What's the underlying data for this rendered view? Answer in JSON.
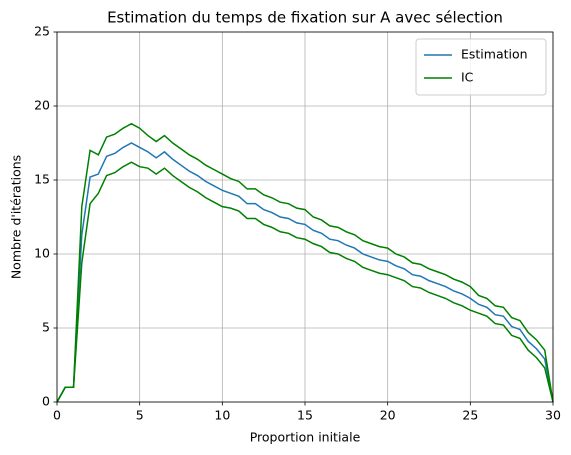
{
  "chart_data": {
    "type": "line",
    "title": "Estimation du temps de fixation sur A avec sélection",
    "xlabel": "Proportion initiale",
    "ylabel": "Nombre d'itérations",
    "x": [
      0,
      0.5,
      1,
      1.5,
      2,
      2.5,
      3,
      3.5,
      4,
      4.5,
      5,
      5.5,
      6,
      6.5,
      7,
      7.5,
      8,
      8.5,
      9,
      9.5,
      10,
      10.5,
      11,
      11.5,
      12,
      12.5,
      13,
      13.5,
      14,
      14.5,
      15,
      15.5,
      16,
      16.5,
      17,
      17.5,
      18,
      18.5,
      19,
      19.5,
      20,
      20.5,
      21,
      21.5,
      22,
      22.5,
      23,
      23.5,
      24,
      24.5,
      25,
      25.5,
      26,
      26.5,
      27,
      27.5,
      28,
      28.5,
      29,
      29.5,
      30
    ],
    "series": [
      {
        "name": "Estimation",
        "color": "#1f77b4",
        "values": [
          0,
          1,
          1,
          11.3,
          15.2,
          15.4,
          16.6,
          16.8,
          17.2,
          17.5,
          17.2,
          16.9,
          16.5,
          16.9,
          16.4,
          16.0,
          15.6,
          15.3,
          14.9,
          14.6,
          14.3,
          14.1,
          13.9,
          13.4,
          13.4,
          13.0,
          12.8,
          12.5,
          12.4,
          12.1,
          12.0,
          11.6,
          11.4,
          11.0,
          10.9,
          10.6,
          10.4,
          10.0,
          9.8,
          9.6,
          9.5,
          9.2,
          9.0,
          8.6,
          8.5,
          8.2,
          8.0,
          7.8,
          7.5,
          7.3,
          7.0,
          6.6,
          6.4,
          5.9,
          5.8,
          5.1,
          4.9,
          4.1,
          3.6,
          2.9,
          0
        ]
      },
      {
        "name": "IC",
        "color": "#008000",
        "values": [
          0,
          1,
          1,
          13.2,
          17.0,
          16.7,
          17.9,
          18.1,
          18.5,
          18.8,
          18.5,
          18.0,
          17.6,
          18.0,
          17.5,
          17.1,
          16.7,
          16.4,
          16.0,
          15.7,
          15.4,
          15.1,
          14.9,
          14.4,
          14.4,
          14.0,
          13.8,
          13.5,
          13.4,
          13.1,
          13.0,
          12.5,
          12.3,
          11.9,
          11.8,
          11.5,
          11.3,
          10.9,
          10.7,
          10.5,
          10.4,
          10.0,
          9.8,
          9.4,
          9.3,
          9.0,
          8.8,
          8.6,
          8.3,
          8.1,
          7.8,
          7.2,
          7.0,
          6.5,
          6.4,
          5.7,
          5.5,
          4.7,
          4.2,
          3.5,
          0
        ],
        "lower": [
          0,
          1,
          1,
          9.4,
          13.4,
          14.1,
          15.3,
          15.5,
          15.9,
          16.2,
          15.9,
          15.8,
          15.4,
          15.8,
          15.3,
          14.9,
          14.5,
          14.2,
          13.8,
          13.5,
          13.2,
          13.1,
          12.9,
          12.4,
          12.4,
          12.0,
          11.8,
          11.5,
          11.4,
          11.1,
          11.0,
          10.7,
          10.5,
          10.1,
          10.0,
          9.7,
          9.5,
          9.1,
          8.9,
          8.7,
          8.6,
          8.4,
          8.2,
          7.8,
          7.7,
          7.4,
          7.2,
          7.0,
          6.7,
          6.5,
          6.2,
          6.0,
          5.8,
          5.3,
          5.2,
          4.5,
          4.3,
          3.5,
          3.0,
          2.3,
          0
        ]
      }
    ],
    "xlim": [
      0,
      30
    ],
    "xticks": [
      0,
      5,
      10,
      15,
      20,
      25,
      30
    ],
    "ylim": [
      0,
      25
    ],
    "yticks": [
      0,
      5,
      10,
      15,
      20,
      25
    ],
    "grid": true,
    "legend": "upper right"
  }
}
